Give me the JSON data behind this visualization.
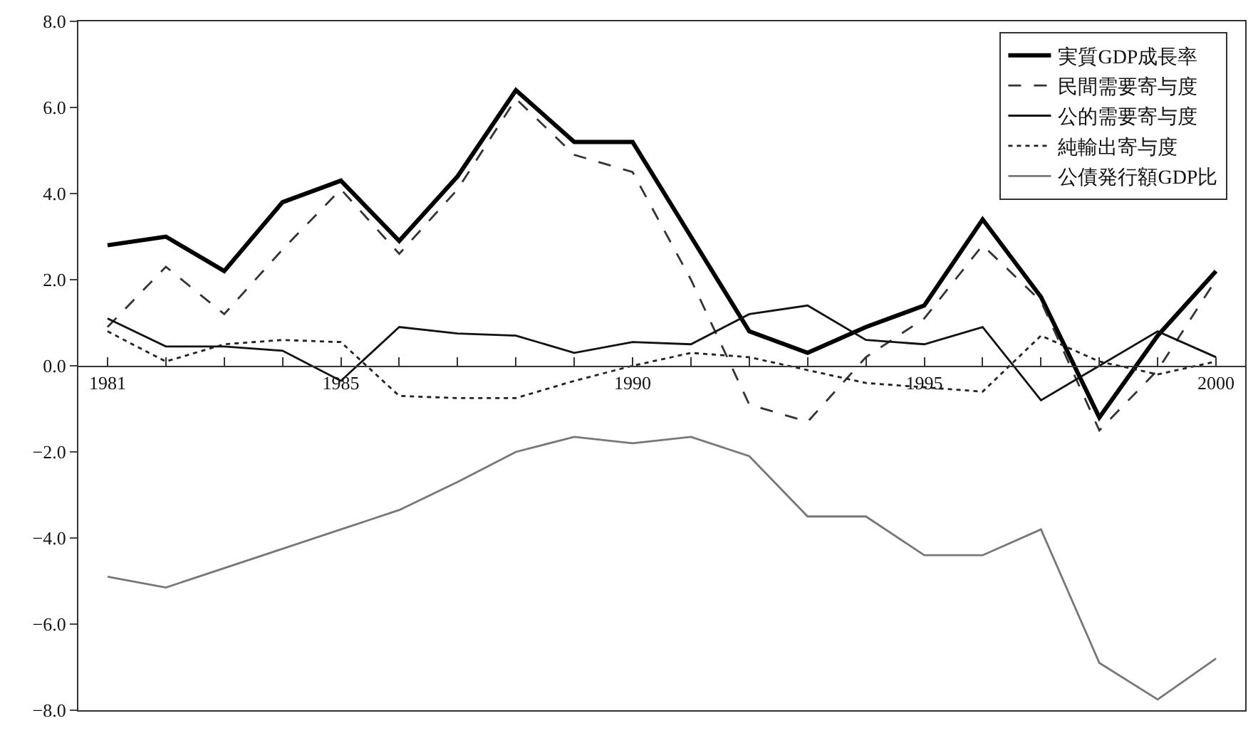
{
  "chart_data": {
    "type": "line",
    "x": [
      1981,
      1982,
      1983,
      1984,
      1985,
      1986,
      1987,
      1988,
      1989,
      1990,
      1991,
      1992,
      1993,
      1994,
      1995,
      1996,
      1997,
      1998,
      1999,
      2000
    ],
    "series": [
      {
        "name": "実質GDP成長率",
        "color": "#000000",
        "line_style": "solid",
        "values": [
          2.8,
          3.0,
          2.2,
          3.8,
          4.3,
          2.9,
          4.4,
          6.4,
          5.2,
          5.2,
          3.0,
          0.8,
          0.3,
          0.9,
          1.4,
          3.4,
          1.6,
          -1.2,
          0.7,
          2.2
        ]
      },
      {
        "name": "民間需要寄与度",
        "color": "#333333",
        "line_style": "dashed",
        "values": [
          0.9,
          2.3,
          1.2,
          2.7,
          4.1,
          2.6,
          4.1,
          6.2,
          4.9,
          4.5,
          2.0,
          -0.9,
          -1.3,
          0.2,
          1.1,
          2.8,
          1.5,
          -1.5,
          -0.1,
          2.0
        ]
      },
      {
        "name": "公的需要寄与度",
        "color": "#111111",
        "line_style": "solid",
        "values": [
          1.1,
          0.45,
          0.45,
          0.35,
          -0.35,
          0.9,
          0.75,
          0.7,
          0.3,
          0.55,
          0.5,
          1.2,
          1.4,
          0.6,
          0.5,
          0.9,
          -0.8,
          0.0,
          0.8,
          0.2
        ]
      },
      {
        "name": "純輸出寄与度",
        "color": "#222222",
        "line_style": "dotted",
        "values": [
          0.8,
          0.1,
          0.5,
          0.6,
          0.55,
          -0.7,
          -0.75,
          -0.75,
          -0.35,
          0.0,
          0.3,
          0.2,
          -0.1,
          -0.4,
          -0.5,
          -0.6,
          0.7,
          0.1,
          -0.2,
          0.1
        ]
      },
      {
        "name": "公債発行額GDP比",
        "color": "#777777",
        "line_style": "solid",
        "values": [
          -4.9,
          -5.15,
          -4.7,
          -4.25,
          -3.8,
          -3.35,
          -2.7,
          -2.0,
          -1.65,
          -1.8,
          -1.65,
          -2.1,
          -3.5,
          -3.5,
          -4.4,
          -4.4,
          -3.8,
          -6.9,
          -7.75,
          -6.8
        ]
      }
    ],
    "xlim": [
      1980.5,
      2000.5
    ],
    "xticks": [
      1981,
      {
        "value": 1982,
        "label": null
      },
      {
        "value": 1983,
        "label": null
      },
      {
        "value": 1984,
        "label": null
      },
      1985,
      {
        "value": 1986,
        "label": null
      },
      {
        "value": 1987,
        "label": null
      },
      {
        "value": 1988,
        "label": null
      },
      {
        "value": 1989,
        "label": null
      },
      1990,
      {
        "value": 1991,
        "label": null
      },
      {
        "value": 1992,
        "label": null
      },
      {
        "value": 1993,
        "label": null
      },
      {
        "value": 1994,
        "label": null
      },
      1995,
      {
        "value": 1996,
        "label": null
      },
      {
        "value": 1997,
        "label": null
      },
      {
        "value": 1998,
        "label": null
      },
      {
        "value": 1999,
        "label": null
      },
      2000
    ],
    "ylim": [
      -8,
      8
    ],
    "yticks": [
      {
        "value": -8,
        "label": "−8.0"
      },
      {
        "value": -6,
        "label": "−6.0"
      },
      {
        "value": -4,
        "label": "−4.0"
      },
      {
        "value": -2,
        "label": "−2.0"
      },
      {
        "value": 0,
        "label": "0.0"
      },
      {
        "value": 2,
        "label": "2.0"
      },
      {
        "value": 4,
        "label": "4.0"
      },
      {
        "value": 6,
        "label": "6.0"
      },
      {
        "value": 8,
        "label": "8.0"
      }
    ],
    "legend": "top right",
    "marker": "none"
  }
}
